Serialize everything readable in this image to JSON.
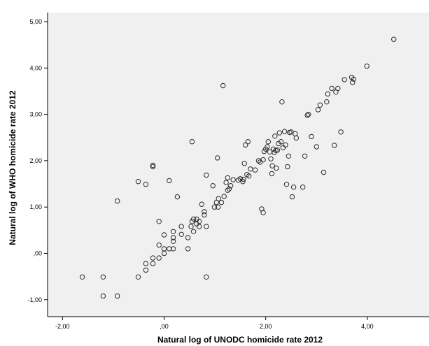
{
  "chart_data": {
    "type": "scatter",
    "xlabel": "Natural log of UNODC homicide rate 2012",
    "ylabel": "Natural log of WHO homicide rate 2012",
    "xlim": [
      -2.5,
      5.0
    ],
    "ylim": [
      -1.25,
      5.1
    ],
    "x_ticks": [
      -2,
      0,
      2,
      4
    ],
    "y_ticks": [
      -1,
      0,
      1,
      2,
      3,
      4,
      5
    ],
    "x_tick_labels": [
      "-2,00",
      ",00",
      "2,00",
      "4,00"
    ],
    "y_tick_labels": [
      "-1,00",
      ",00",
      "1,00",
      "2,00",
      "3,00",
      "4,00",
      "5,00"
    ],
    "grid": false,
    "colors": {
      "plot_background": "#f0f0f0",
      "marker": "#2b2b2b"
    },
    "series": [
      {
        "points": [
          [
            -1.61,
            -0.51
          ],
          [
            -1.2,
            -0.51
          ],
          [
            -1.2,
            -0.92
          ],
          [
            -0.92,
            -0.92
          ],
          [
            -0.92,
            1.13
          ],
          [
            -0.51,
            -0.51
          ],
          [
            -0.51,
            1.55
          ],
          [
            -0.36,
            -0.22
          ],
          [
            -0.36,
            -0.36
          ],
          [
            -0.36,
            1.49
          ],
          [
            -0.22,
            1.87
          ],
          [
            -0.22,
            1.9
          ],
          [
            -0.22,
            -0.22
          ],
          [
            -0.22,
            -0.1
          ],
          [
            -0.1,
            -0.1
          ],
          [
            -0.1,
            0.18
          ],
          [
            -0.1,
            0.69
          ],
          [
            0.0,
            0.0
          ],
          [
            0.0,
            0.1
          ],
          [
            0.0,
            0.4
          ],
          [
            0.1,
            0.1
          ],
          [
            0.1,
            1.57
          ],
          [
            0.18,
            0.1
          ],
          [
            0.18,
            0.26
          ],
          [
            0.18,
            0.34
          ],
          [
            0.18,
            0.47
          ],
          [
            0.26,
            1.22
          ],
          [
            0.34,
            0.58
          ],
          [
            0.34,
            0.41
          ],
          [
            0.47,
            0.1
          ],
          [
            0.47,
            0.34
          ],
          [
            0.53,
            0.58
          ],
          [
            0.55,
            2.41
          ],
          [
            0.55,
            0.69
          ],
          [
            0.58,
            0.47
          ],
          [
            0.58,
            0.74
          ],
          [
            0.64,
            0.64
          ],
          [
            0.64,
            0.74
          ],
          [
            0.69,
            0.69
          ],
          [
            0.69,
            0.58
          ],
          [
            0.74,
            1.06
          ],
          [
            0.79,
            0.83
          ],
          [
            0.79,
            0.9
          ],
          [
            0.83,
            1.69
          ],
          [
            0.83,
            -0.51
          ],
          [
            0.83,
            0.58
          ],
          [
            0.96,
            1.46
          ],
          [
            0.99,
            1.0
          ],
          [
            1.03,
            1.1
          ],
          [
            1.05,
            2.06
          ],
          [
            1.06,
            1.0
          ],
          [
            1.07,
            1.18
          ],
          [
            1.13,
            1.1
          ],
          [
            1.16,
            3.62
          ],
          [
            1.18,
            1.23
          ],
          [
            1.22,
            1.53
          ],
          [
            1.25,
            1.36
          ],
          [
            1.25,
            1.63
          ],
          [
            1.28,
            1.39
          ],
          [
            1.31,
            1.46
          ],
          [
            1.36,
            1.59
          ],
          [
            1.46,
            1.58
          ],
          [
            1.5,
            1.61
          ],
          [
            1.55,
            1.55
          ],
          [
            1.56,
            1.6
          ],
          [
            1.58,
            1.94
          ],
          [
            1.6,
            2.34
          ],
          [
            1.63,
            1.7
          ],
          [
            1.65,
            2.41
          ],
          [
            1.67,
            1.67
          ],
          [
            1.7,
            1.82
          ],
          [
            1.79,
            1.8
          ],
          [
            1.86,
            2.0
          ],
          [
            1.89,
            1.97
          ],
          [
            1.92,
            0.96
          ],
          [
            1.95,
            2.02
          ],
          [
            1.95,
            0.88
          ],
          [
            1.97,
            2.2
          ],
          [
            2.0,
            2.25
          ],
          [
            2.03,
            2.3
          ],
          [
            2.05,
            2.41
          ],
          [
            2.08,
            2.19
          ],
          [
            2.1,
            2.04
          ],
          [
            2.12,
            1.72
          ],
          [
            2.13,
            1.89
          ],
          [
            2.15,
            2.25
          ],
          [
            2.17,
            2.18
          ],
          [
            2.18,
            2.53
          ],
          [
            2.2,
            2.22
          ],
          [
            2.21,
            1.84
          ],
          [
            2.23,
            2.23
          ],
          [
            2.25,
            2.37
          ],
          [
            2.27,
            2.6
          ],
          [
            2.3,
            2.41
          ],
          [
            2.32,
            3.27
          ],
          [
            2.34,
            2.28
          ],
          [
            2.37,
            2.63
          ],
          [
            2.39,
            2.34
          ],
          [
            2.41,
            1.49
          ],
          [
            2.43,
            1.87
          ],
          [
            2.45,
            2.1
          ],
          [
            2.47,
            2.61
          ],
          [
            2.5,
            2.62
          ],
          [
            2.52,
            1.22
          ],
          [
            2.55,
            1.43
          ],
          [
            2.58,
            2.58
          ],
          [
            2.6,
            2.49
          ],
          [
            2.73,
            1.43
          ],
          [
            2.77,
            2.1
          ],
          [
            2.82,
            2.98
          ],
          [
            2.84,
            3.0
          ],
          [
            2.9,
            2.52
          ],
          [
            3.0,
            2.3
          ],
          [
            3.03,
            3.1
          ],
          [
            3.07,
            3.2
          ],
          [
            3.14,
            1.75
          ],
          [
            3.2,
            3.27
          ],
          [
            3.22,
            3.44
          ],
          [
            3.3,
            3.56
          ],
          [
            3.35,
            2.33
          ],
          [
            3.38,
            3.48
          ],
          [
            3.42,
            3.56
          ],
          [
            3.48,
            2.62
          ],
          [
            3.55,
            3.75
          ],
          [
            3.69,
            3.8
          ],
          [
            3.71,
            3.69
          ],
          [
            3.73,
            3.76
          ],
          [
            3.99,
            4.04
          ],
          [
            4.52,
            4.62
          ]
        ]
      }
    ]
  }
}
